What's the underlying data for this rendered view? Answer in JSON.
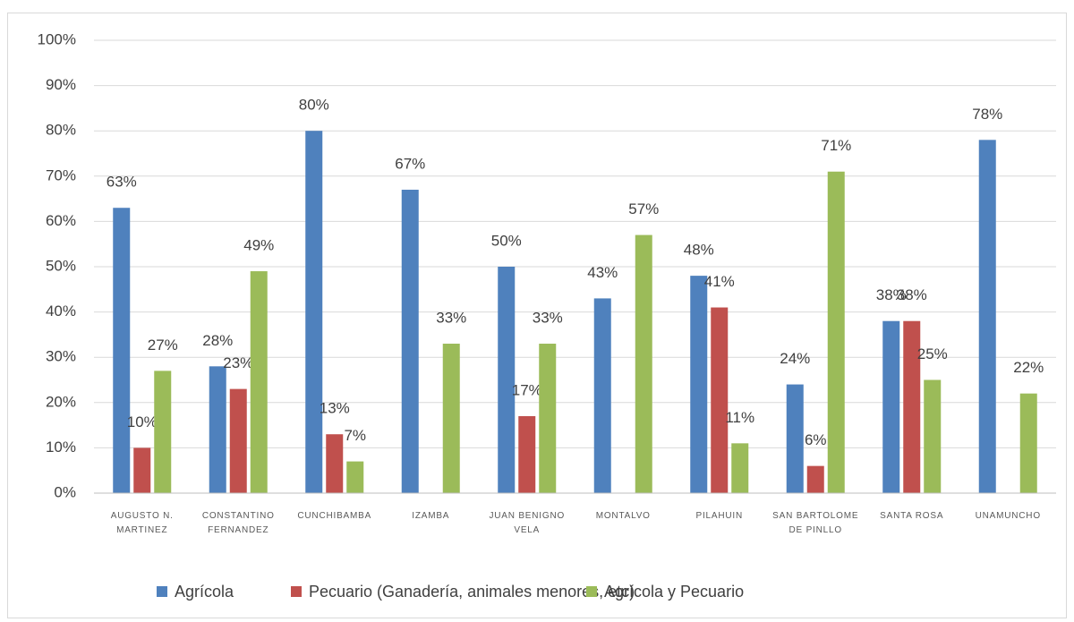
{
  "chart_data": {
    "type": "bar",
    "categories": [
      "AUGUSTO N. MARTINEZ",
      "CONSTANTINO FERNANDEZ",
      "CUNCHIBAMBA",
      "IZAMBA",
      "JUAN BENIGNO VELA",
      "MONTALVO",
      "PILAHUIN",
      "SAN BARTOLOME DE PINLLO",
      "SANTA ROSA",
      "UNAMUNCHO"
    ],
    "series": [
      {
        "name": "Agrícola",
        "color": "#4f81bd",
        "values": [
          63,
          28,
          80,
          67,
          50,
          43,
          48,
          24,
          38,
          78
        ],
        "value_labels": [
          "63%",
          "28%",
          "80%",
          "67%",
          "50%",
          "43%",
          "48%",
          "24%",
          "38%",
          "78%"
        ]
      },
      {
        "name": "Pecuario (Ganadería, animales menores, etc)",
        "color": "#c0504d",
        "values": [
          10,
          23,
          13,
          null,
          17,
          null,
          41,
          6,
          38,
          null
        ],
        "value_labels": [
          "10%",
          "23%",
          "13%",
          null,
          "17%",
          null,
          "41%",
          "6%",
          "38%",
          null
        ]
      },
      {
        "name": "Agrícola y Pecuario",
        "color": "#9bbb59",
        "values": [
          27,
          49,
          7,
          33,
          33,
          57,
          11,
          71,
          25,
          22
        ],
        "value_labels": [
          "27%",
          "49%",
          "7%",
          "33%",
          "33%",
          "57%",
          "11%",
          "71%",
          "25%",
          "22%"
        ]
      }
    ],
    "ylim": [
      0,
      100
    ],
    "yticks": [
      {
        "value": 0,
        "label": "0%"
      },
      {
        "value": 10,
        "label": "10%"
      },
      {
        "value": 20,
        "label": "20%"
      },
      {
        "value": 30,
        "label": "30%"
      },
      {
        "value": 40,
        "label": "40%"
      },
      {
        "value": 50,
        "label": "50%"
      },
      {
        "value": 60,
        "label": "60%"
      },
      {
        "value": 70,
        "label": "70%"
      },
      {
        "value": 80,
        "label": "80%"
      },
      {
        "value": 90,
        "label": "90%"
      },
      {
        "value": 100,
        "label": "100%"
      }
    ],
    "grid": true,
    "legend": "bottom"
  }
}
